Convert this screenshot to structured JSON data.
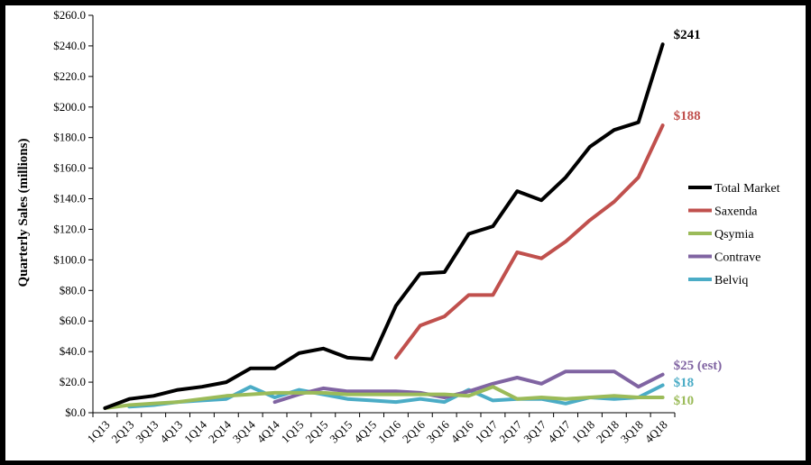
{
  "chart_data": {
    "type": "line",
    "ylabel": "Quarterly Sales (millions)",
    "xlabel": "",
    "title": "",
    "ylim": [
      0,
      260
    ],
    "y_tick_step": 20,
    "y_tick_labels": [
      "$0.0",
      "$20.0",
      "$40.0",
      "$60.0",
      "$80.0",
      "$100.0",
      "$120.0",
      "$140.0",
      "$160.0",
      "$180.0",
      "$200.0",
      "$220.0",
      "$240.0",
      "$260.0"
    ],
    "grid": false,
    "legend_position": "right",
    "categories": [
      "1Q13",
      "2Q13",
      "3Q13",
      "4Q13",
      "1Q14",
      "2Q14",
      "3Q14",
      "4Q14",
      "1Q15",
      "2Q15",
      "3Q15",
      "4Q15",
      "1Q16",
      "2Q16",
      "3Q16",
      "4Q16",
      "1Q17",
      "2Q17",
      "3Q17",
      "4Q17",
      "1Q18",
      "2Q18",
      "3Q18",
      "4Q18"
    ],
    "series": [
      {
        "name": "Total Market",
        "color": "#000000",
        "values": [
          3,
          9,
          11,
          15,
          17,
          20,
          29,
          29,
          39,
          42,
          36,
          35,
          70,
          91,
          92,
          117,
          122,
          145,
          139,
          154,
          174,
          185,
          190,
          241
        ],
        "end_label": "$241",
        "end_label_color": "#000000"
      },
      {
        "name": "Saxenda",
        "color": "#C0504D",
        "values": [
          null,
          null,
          null,
          null,
          null,
          null,
          null,
          null,
          null,
          null,
          null,
          null,
          36,
          57,
          63,
          77,
          77,
          105,
          101,
          112,
          126,
          138,
          154,
          188
        ],
        "end_label": "$188",
        "end_label_color": "#C0504D"
      },
      {
        "name": "Qsymia",
        "color": "#9BBB59",
        "values": [
          3,
          5,
          6,
          7,
          9,
          11,
          12,
          13,
          13,
          13,
          12,
          12,
          12,
          12,
          12,
          11,
          17,
          9,
          10,
          9,
          10,
          11,
          10,
          10
        ],
        "end_label": "$10",
        "end_label_color": "#9BBB59"
      },
      {
        "name": "Contrave",
        "color": "#8064A2",
        "values": [
          null,
          null,
          null,
          null,
          null,
          null,
          null,
          7,
          12,
          16,
          14,
          14,
          14,
          13,
          10,
          14,
          19,
          23,
          19,
          27,
          27,
          27,
          17,
          25
        ],
        "end_label": "$25 (est)",
        "end_label_color": "#8064A2"
      },
      {
        "name": "Belviq",
        "color": "#4BACC6",
        "values": [
          null,
          4,
          5,
          7,
          8,
          9,
          17,
          10,
          15,
          12,
          9,
          8,
          7,
          9,
          7,
          15,
          8,
          9,
          9,
          6,
          10,
          9,
          10,
          18
        ],
        "end_label": "$18",
        "end_label_color": "#4BACC6"
      }
    ]
  }
}
